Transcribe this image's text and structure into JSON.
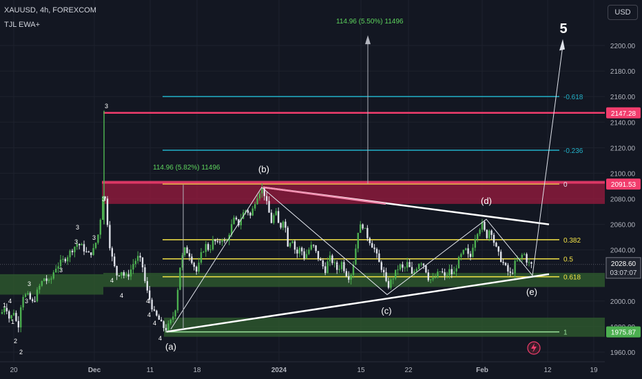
{
  "header": {
    "symbol": "XAUUSD, 4h, FOREXCOM",
    "indicator": "TJL EWA+",
    "currency_button": "USD"
  },
  "colors": {
    "bg": "#131722",
    "grid": "#1e222d",
    "up": "#4caf50",
    "down": "#e0e3eb",
    "red_zone": "#9b1b3f",
    "green_zone": "#2e5a2e",
    "fib_cyan": "#22b2c9",
    "fib_yellow": "#f5e547",
    "fib_green": "#9be39b",
    "red_line": "#f23d6d",
    "measure": "#5dd35d"
  },
  "chart_data": {
    "type": "candlestick",
    "symbol": "XAUUSD",
    "timeframe": "4h",
    "y_ticks": [
      1960,
      1980,
      2000,
      2020,
      2040,
      2060,
      2080,
      2100,
      2120,
      2140,
      2160,
      2180,
      2200
    ],
    "y_tick_labels": [
      "1960.00",
      "1980.00",
      "2000.00",
      "2020.00",
      "2040.00",
      "2060.00",
      "2080.00",
      "2100.00",
      "2120.00",
      "2140.00",
      "2160.00",
      "2180.00",
      "2200.00"
    ],
    "x_labels": [
      "20",
      "Dec",
      "11",
      "18",
      "2024",
      "15",
      "22",
      "Feb",
      "12",
      "19"
    ],
    "price_labels": [
      {
        "value": 2147.28,
        "text": "2147.28",
        "color": "#f23d6d"
      },
      {
        "value": 2091.53,
        "text": "2091.53",
        "color": "#f23d6d"
      },
      {
        "value": 1975.87,
        "text": "1975.87",
        "color": "#4caf50"
      }
    ],
    "current_price": {
      "value": 2028.6,
      "text": "2028.60",
      "countdown": "03:07:07"
    },
    "fib_levels": [
      {
        "label": "-0.618",
        "value": 2160,
        "color": "#22b2c9"
      },
      {
        "label": "-0.236",
        "value": 2118,
        "color": "#22b2c9"
      },
      {
        "label": "0",
        "value": 2091.53,
        "color": "#f5e547"
      },
      {
        "label": "0.382",
        "value": 2048,
        "color": "#f5e547"
      },
      {
        "label": "0.5",
        "value": 2033,
        "color": "#f5e547"
      },
      {
        "label": "0.618",
        "value": 2019,
        "color": "#f5e547"
      },
      {
        "label": "1",
        "value": 1975.87,
        "color": "#9be39b"
      }
    ],
    "measurements": [
      {
        "text": "114.96 (5.82%) 11496"
      },
      {
        "text": "114.96 (5.50%) 11496"
      }
    ],
    "wave_labels": [
      "(a)",
      "(b)",
      "(c)",
      "(d)",
      "(e)",
      "5"
    ],
    "swing_labels": [
      "1",
      "2",
      "3",
      "4"
    ]
  }
}
